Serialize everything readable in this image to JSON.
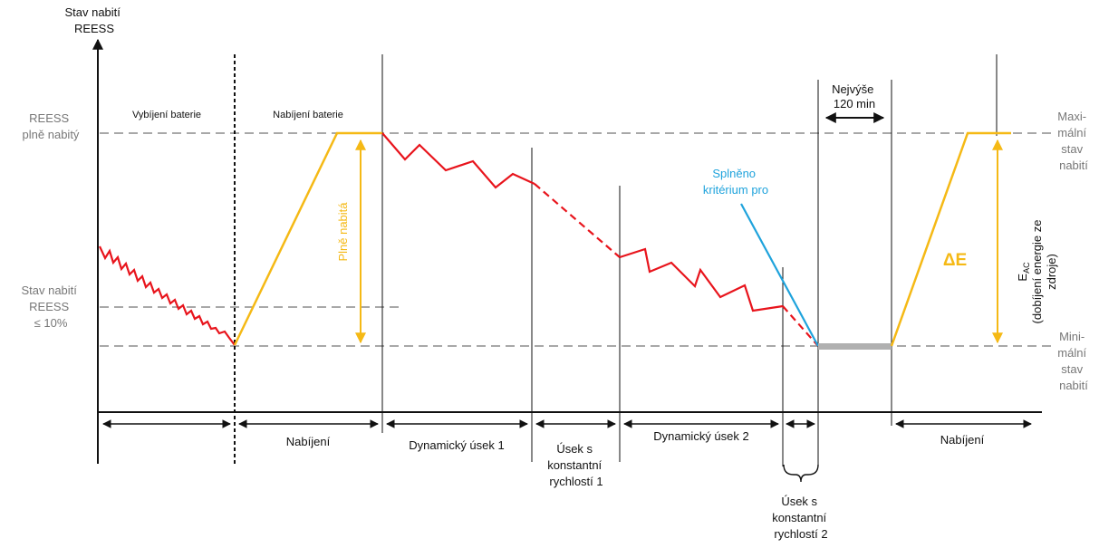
{
  "y_axis_title": [
    "Stav nabití",
    "REESS"
  ],
  "left_labels": {
    "full": [
      "REESS",
      "plně nabitý"
    ],
    "low": [
      "Stav nabití",
      "REESS",
      "≤ 10%"
    ]
  },
  "right_labels": {
    "max": [
      "Maxi-",
      "mální",
      "stav",
      "nabití"
    ],
    "min": [
      "Mini-",
      "mální",
      "stav",
      "nabití"
    ]
  },
  "phase_labels": {
    "discharge": "Vybíjení baterie",
    "charge": "Nabíjení baterie"
  },
  "annotations": {
    "full_charge": "Plně nabitá",
    "max_time": [
      "Nejvýše",
      "120 min"
    ],
    "criterion": [
      "Splněno",
      "kritérium pro"
    ],
    "delta_e": "ΔE",
    "eac_main": "E",
    "eac_sub": "AC",
    "eac_desc": [
      "(dobíjení energie ze",
      "zdroje)"
    ]
  },
  "segments": {
    "charging_1": "Nabíjení",
    "dynamic_1": "Dynamický úsek 1",
    "constant_1": [
      "Úsek s",
      "konstantní",
      "rychlostí 1"
    ],
    "dynamic_2": "Dynamický úsek 2",
    "constant_2": [
      "Úsek s",
      "konstantní",
      "rychlostí 2"
    ],
    "charging_2": "Nabíjení"
  },
  "colors": {
    "discharge_line": "#e8141c",
    "charge_line": "#f5b915",
    "criterion_line": "#1fa3dc",
    "dashed_level": "#a8a8a8",
    "annotation_blue": "#1fa3dc",
    "annotation_yellow": "#f5b915"
  }
}
